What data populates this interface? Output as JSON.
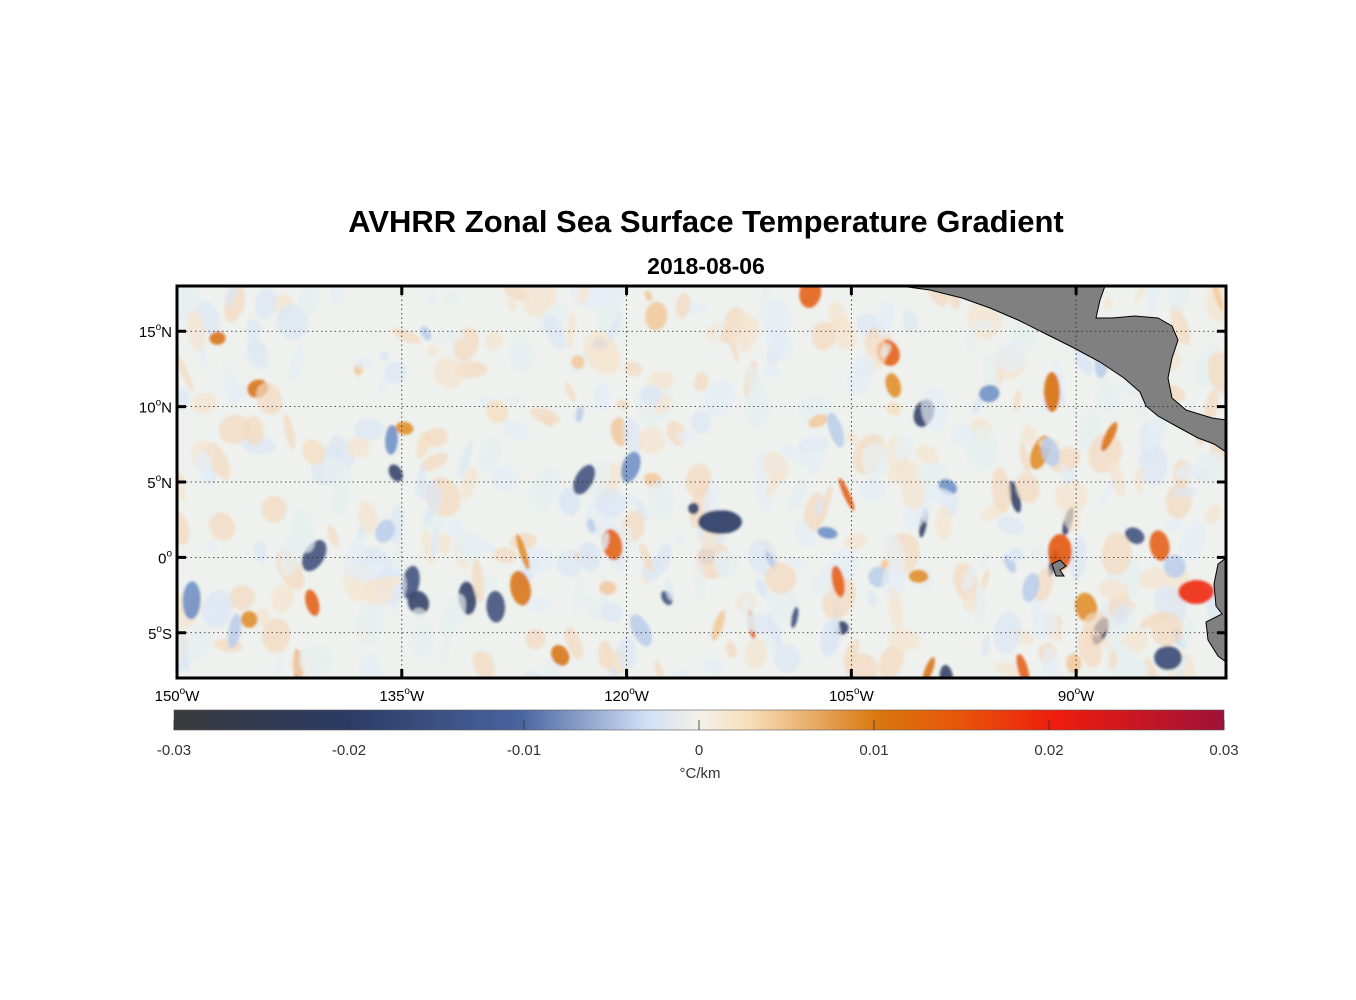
{
  "title": "AVHRR Zonal Sea Surface Temperature Gradient",
  "subtitle": "2018-08-06",
  "map": {
    "lon_range": [
      -150,
      -80
    ],
    "lat_range": [
      -8,
      18
    ],
    "lat_ticks": [
      {
        "value": 15,
        "num": "15",
        "hemi": "N"
      },
      {
        "value": 10,
        "num": "10",
        "hemi": "N"
      },
      {
        "value": 5,
        "num": "5",
        "hemi": "N"
      },
      {
        "value": 0,
        "num": "0",
        "hemi": ""
      },
      {
        "value": -5,
        "num": "5",
        "hemi": "S"
      }
    ],
    "lon_ticks": [
      {
        "value": -150,
        "num": "150",
        "hemi": "W"
      },
      {
        "value": -135,
        "num": "135",
        "hemi": "W"
      },
      {
        "value": -120,
        "num": "120",
        "hemi": "W"
      },
      {
        "value": -105,
        "num": "105",
        "hemi": "W"
      },
      {
        "value": -90,
        "num": "90",
        "hemi": "W"
      }
    ],
    "gridlines": true,
    "land_color": "#808080"
  },
  "colorbar": {
    "range": [
      -0.03,
      0.03
    ],
    "tick_values": [
      -0.03,
      -0.02,
      -0.01,
      0,
      0.01,
      0.02,
      0.03
    ],
    "tick_labels": [
      "-0.03",
      "-0.02",
      "-0.01",
      "0",
      "0.01",
      "0.02",
      "0.03"
    ],
    "unit_label": "°C/km",
    "placement": "bottom",
    "colors": [
      "#3a3a3c",
      "#2a3a63",
      "#4a64a0",
      "#cfe0f5",
      "#f4f1ea",
      "#f7ddb8",
      "#d9770e",
      "#e8540a",
      "#ee1c0e",
      "#9e1237"
    ]
  }
}
